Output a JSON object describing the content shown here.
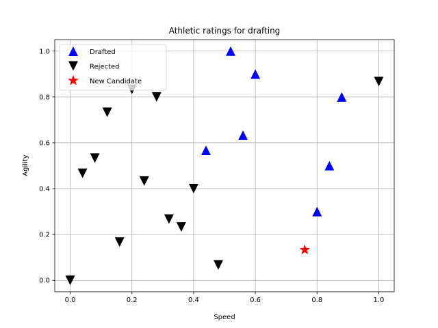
{
  "chart_data": {
    "type": "scatter",
    "title": "Athletic ratings for drafting",
    "xlabel": "Speed",
    "ylabel": "Agility",
    "xlim": [
      -0.05,
      1.05
    ],
    "ylim": [
      -0.05,
      1.05
    ],
    "xticks": [
      "0.0",
      "0.2",
      "0.4",
      "0.6",
      "0.8",
      "1.0"
    ],
    "yticks": [
      "0.0",
      "0.2",
      "0.4",
      "0.6",
      "0.8",
      "1.0"
    ],
    "grid": true,
    "legend_position": "top-left",
    "series": [
      {
        "name": "Drafted",
        "marker": "triangle-up",
        "color": "#0000ff",
        "points": [
          {
            "x": 0.44,
            "y": 0.567
          },
          {
            "x": 0.52,
            "y": 1.0
          },
          {
            "x": 0.56,
            "y": 0.633
          },
          {
            "x": 0.6,
            "y": 0.9
          },
          {
            "x": 0.8,
            "y": 0.3
          },
          {
            "x": 0.84,
            "y": 0.5
          },
          {
            "x": 0.88,
            "y": 0.8
          }
        ]
      },
      {
        "name": "Rejected",
        "marker": "triangle-down",
        "color": "#000000",
        "points": [
          {
            "x": 0.0,
            "y": 0.0
          },
          {
            "x": 0.04,
            "y": 0.467
          },
          {
            "x": 0.08,
            "y": 0.533
          },
          {
            "x": 0.12,
            "y": 0.733
          },
          {
            "x": 0.16,
            "y": 0.167
          },
          {
            "x": 0.2,
            "y": 0.833
          },
          {
            "x": 0.24,
            "y": 0.433
          },
          {
            "x": 0.28,
            "y": 0.8
          },
          {
            "x": 0.32,
            "y": 0.267
          },
          {
            "x": 0.36,
            "y": 0.233
          },
          {
            "x": 0.4,
            "y": 0.4
          },
          {
            "x": 0.48,
            "y": 0.067
          },
          {
            "x": 1.0,
            "y": 0.867
          }
        ]
      },
      {
        "name": "New Candidate",
        "marker": "star",
        "color": "#ff0000",
        "points": [
          {
            "x": 0.76,
            "y": 0.133
          }
        ]
      }
    ]
  }
}
